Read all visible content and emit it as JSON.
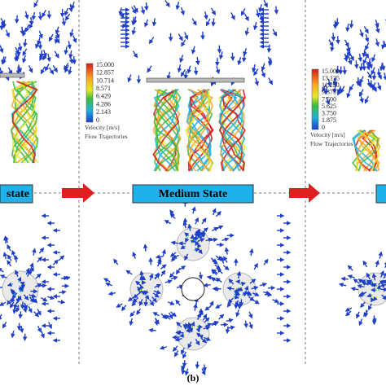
{
  "state_labels": [
    "state",
    "Medium State"
  ],
  "legend_left": {
    "ticks": [
      "15.000",
      "12.857",
      "10.714",
      "8.571",
      "6.429",
      "4.286",
      "2.143",
      "0"
    ],
    "unit": "Velocity [m/s]",
    "note": "Flow Trajectories"
  },
  "legend_right": {
    "ticks": [
      "15.000",
      "13.125",
      "11.250",
      "9.375",
      "7.500",
      "5.625",
      "3.750",
      "1.875",
      "0"
    ],
    "unit": "Velocity [m/s]",
    "note": "Flow Trajectories"
  },
  "caption": "(b)"
}
